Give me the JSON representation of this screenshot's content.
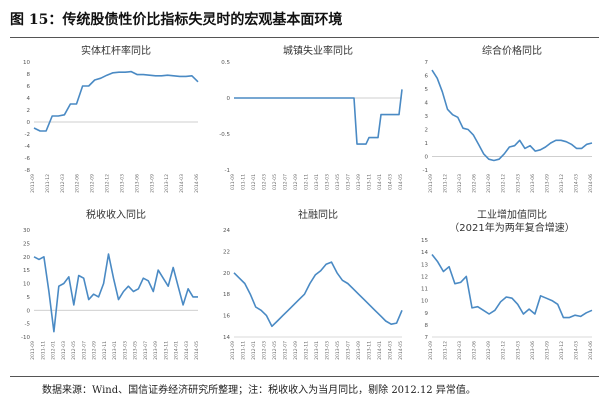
{
  "figure": {
    "title": "图 15：传统股债性价比指标失灵时的宏观基本面环境",
    "source_note": "数据来源：Wind、国信证券经济研究所整理；注：税收收入为当月同比，剔除 2012.12 异常值。"
  },
  "style": {
    "line_color": "#4a8ac4",
    "zero_line_color": "#bfbfbf",
    "axis_color": "#cccccc"
  },
  "chart_data": [
    {
      "type": "line",
      "title": "实体杠杆率同比",
      "ylim": [
        -8,
        10
      ],
      "yticks": [
        -8,
        -6,
        -4,
        -2,
        0,
        2,
        4,
        6,
        8,
        10
      ],
      "xticks": [
        "2011-09",
        "2011-12",
        "2012-03",
        "2012-06",
        "2012-09",
        "2012-12",
        "2013-03",
        "2013-06",
        "2013-09",
        "2013-12",
        "2014-03",
        "2014-06"
      ],
      "values": [
        -1,
        -1.5,
        -1.5,
        1,
        1,
        1.2,
        3,
        3,
        6,
        6,
        7,
        7.3,
        7.8,
        8.2,
        8.3,
        8.3,
        8.4,
        7.9,
        7.9,
        7.8,
        7.7,
        7.7,
        7.8,
        7.7,
        7.6,
        7.6,
        7.7,
        6.7
      ]
    },
    {
      "type": "line",
      "title": "城镇失业率同比",
      "ylim": [
        -1,
        0.5
      ],
      "yticks": [
        -1,
        -0.5,
        0,
        0.5
      ],
      "xticks": [
        "011-09",
        "011-11",
        "012-01",
        "012-03",
        "012-05",
        "012-07",
        "012-09",
        "012-11",
        "013-01",
        "013-03",
        "013-05",
        "013-07",
        "013-09",
        "013-11",
        "014-01",
        "014-03",
        "014-05"
      ],
      "values": [
        0,
        0,
        0,
        0,
        0,
        0,
        0,
        0,
        0,
        0,
        0,
        0,
        0,
        0,
        0,
        0,
        0,
        0,
        0,
        0,
        0,
        0,
        0,
        0,
        0,
        0,
        0,
        0,
        0,
        0,
        0,
        0,
        0,
        0,
        0,
        0,
        0,
        0,
        0,
        0,
        0,
        -0.64,
        -0.64,
        -0.64,
        -0.64,
        -0.55,
        -0.55,
        -0.55,
        -0.55,
        -0.23,
        -0.23,
        -0.23,
        -0.23,
        -0.23,
        -0.23,
        -0.23,
        0.12
      ]
    },
    {
      "type": "line",
      "title": "综合价格同比",
      "ylim": [
        -1,
        7
      ],
      "yticks": [
        -1,
        0,
        1,
        2,
        3,
        4,
        5,
        6,
        7
      ],
      "xticks": [
        "2011-09",
        "2011-12",
        "2012-03",
        "2012-06",
        "2012-09",
        "2012-12",
        "2013-03",
        "2013-06",
        "2013-09",
        "2013-12",
        "2014-03",
        "2014-06"
      ],
      "values": [
        6.4,
        5.8,
        4.8,
        3.5,
        3.1,
        2.9,
        2.1,
        2.0,
        1.6,
        0.9,
        0.2,
        -0.2,
        -0.3,
        -0.2,
        0.2,
        0.7,
        0.8,
        1.2,
        0.6,
        0.8,
        0.4,
        0.5,
        0.7,
        1.0,
        1.2,
        1.2,
        1.1,
        0.9,
        0.6,
        0.6,
        0.9,
        1.0
      ]
    },
    {
      "type": "line",
      "title": "税收收入同比",
      "ylim": [
        -10,
        30
      ],
      "yticks": [
        -10,
        -5,
        0,
        5,
        10,
        15,
        20,
        25,
        30
      ],
      "xticks": [
        "2011-09",
        "2011-11",
        "2012-01",
        "2012-03",
        "2012-05",
        "2012-07",
        "2012-09",
        "2012-11",
        "2013-01",
        "2013-03",
        "2013-05",
        "2013-07",
        "2013-09",
        "2013-11",
        "2014-01",
        "2014-03",
        "2014-05"
      ],
      "values": [
        20,
        19,
        20,
        7,
        -8,
        9,
        10,
        12.5,
        2,
        13,
        12,
        4,
        6,
        5,
        10,
        21,
        12,
        4,
        7,
        9,
        7,
        8,
        12,
        11,
        7,
        15,
        12,
        9,
        16,
        9,
        2,
        8,
        5,
        5
      ]
    },
    {
      "type": "line",
      "title": "社融同比",
      "ylim": [
        14,
        24
      ],
      "yticks": [
        14,
        16,
        18,
        20,
        22,
        24
      ],
      "xticks": [
        "2011-09",
        "2011-11",
        "2012-01",
        "2012-03",
        "2012-05",
        "2012-07",
        "2012-09",
        "2012-11",
        "2013-01",
        "2013-03",
        "2013-05",
        "2013-07",
        "2013-09",
        "2013-11",
        "2014-01",
        "2014-03",
        "2014-05"
      ],
      "values": [
        20,
        19.5,
        19,
        18,
        16.8,
        16.5,
        16,
        15,
        15.5,
        16,
        16.5,
        17,
        17.5,
        18,
        19,
        19.8,
        20.2,
        20.8,
        21,
        20,
        19.3,
        19,
        18.5,
        18,
        17.5,
        17,
        16.5,
        16,
        15.5,
        15.2,
        15.3,
        16.5
      ]
    },
    {
      "type": "line",
      "title": "工业增加值同比",
      "subtitle": "（2021年为两年复合增速）",
      "ylim": [
        7,
        15
      ],
      "yticks": [
        7,
        8,
        9,
        10,
        11,
        12,
        13,
        14,
        15
      ],
      "xticks": [
        "2011-09",
        "2011-12",
        "2012-03",
        "2012-06",
        "2012-09",
        "2012-12",
        "2013-03",
        "2013-06",
        "2013-09",
        "2013-12",
        "2014-03",
        "2014-06"
      ],
      "values": [
        13.8,
        13.2,
        12.4,
        12.8,
        11.4,
        11.5,
        12.0,
        9.4,
        9.5,
        9.2,
        8.9,
        9.2,
        9.9,
        10.3,
        10.2,
        9.7,
        8.9,
        9.3,
        8.9,
        10.4,
        10.2,
        10.0,
        9.7,
        8.6,
        8.6,
        8.8,
        8.7,
        9.0,
        9.2
      ]
    }
  ]
}
